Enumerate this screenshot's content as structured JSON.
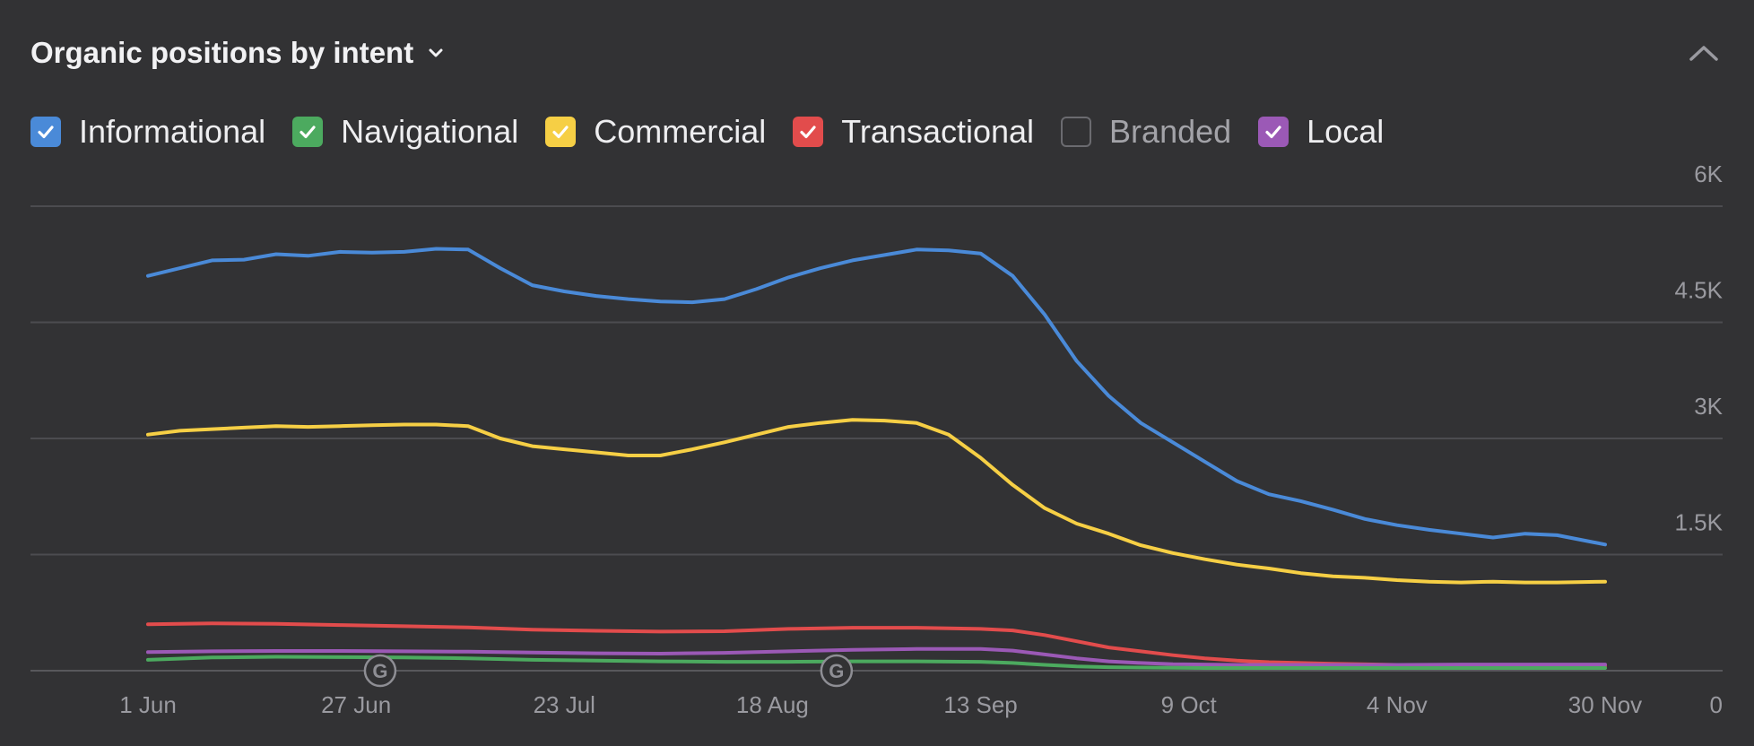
{
  "header": {
    "title": "Organic positions by intent"
  },
  "icons": {
    "title_dropdown": "chevron-down-icon",
    "collapse": "chevron-up-icon",
    "google_update": "google-update-marker-icon"
  },
  "legend": [
    {
      "label": "Informational",
      "checked": true,
      "color": "#4a8ad8"
    },
    {
      "label": "Navigational",
      "checked": true,
      "color": "#4caa5f"
    },
    {
      "label": "Commercial",
      "checked": true,
      "color": "#f6cf45"
    },
    {
      "label": "Transactional",
      "checked": true,
      "color": "#e24c4c"
    },
    {
      "label": "Branded",
      "checked": false,
      "color": "#6b6b70"
    },
    {
      "label": "Local",
      "checked": true,
      "color": "#9b59b6"
    }
  ],
  "chart_data": {
    "type": "line",
    "title": "Organic positions by intent",
    "xlabel": "",
    "ylabel": "",
    "x_ticks": [
      "1 Jun",
      "27 Jun",
      "23 Jul",
      "18 Aug",
      "13 Sep",
      "9 Oct",
      "4 Nov",
      "30 Nov"
    ],
    "y_ticks": [
      "0",
      "1.5K",
      "3K",
      "4.5K",
      "6K"
    ],
    "ylim": [
      0,
      6000
    ],
    "xlim": [
      0,
      182
    ],
    "grid": true,
    "legend_position": "top-left",
    "annotations": [
      {
        "type": "google-update",
        "label": "G",
        "x": 29
      },
      {
        "type": "google-update",
        "label": "G",
        "x": 86
      }
    ],
    "series": [
      {
        "name": "Informational",
        "color": "#4a8ad8",
        "x": [
          0,
          4,
          8,
          12,
          16,
          20,
          24,
          28,
          32,
          36,
          40,
          44,
          48,
          52,
          56,
          60,
          64,
          68,
          72,
          76,
          80,
          84,
          88,
          92,
          96,
          100,
          104,
          108,
          112,
          116,
          120,
          124,
          128,
          132,
          136,
          140,
          144,
          148,
          152,
          156,
          160,
          164,
          168,
          172,
          176,
          182
        ],
        "values": [
          5100,
          5200,
          5300,
          5310,
          5380,
          5360,
          5410,
          5400,
          5410,
          5450,
          5440,
          5200,
          4980,
          4900,
          4840,
          4800,
          4770,
          4760,
          4800,
          4930,
          5080,
          5200,
          5300,
          5370,
          5440,
          5430,
          5390,
          5100,
          4600,
          4000,
          3550,
          3200,
          2950,
          2700,
          2450,
          2280,
          2190,
          2080,
          1960,
          1880,
          1820,
          1770,
          1720,
          1770,
          1750,
          1630
        ]
      },
      {
        "name": "Commercial",
        "color": "#f6cf45",
        "x": [
          0,
          4,
          8,
          12,
          16,
          20,
          24,
          28,
          32,
          36,
          40,
          44,
          48,
          52,
          56,
          60,
          64,
          68,
          72,
          76,
          80,
          84,
          88,
          92,
          96,
          100,
          104,
          108,
          112,
          116,
          120,
          124,
          128,
          132,
          136,
          140,
          144,
          148,
          152,
          156,
          160,
          164,
          168,
          172,
          176,
          182
        ],
        "values": [
          3050,
          3100,
          3120,
          3140,
          3160,
          3150,
          3160,
          3170,
          3180,
          3180,
          3160,
          3000,
          2900,
          2860,
          2820,
          2780,
          2780,
          2860,
          2950,
          3050,
          3150,
          3200,
          3240,
          3230,
          3200,
          3050,
          2750,
          2400,
          2100,
          1900,
          1770,
          1620,
          1520,
          1440,
          1370,
          1320,
          1260,
          1220,
          1200,
          1170,
          1150,
          1140,
          1150,
          1140,
          1140,
          1150
        ]
      },
      {
        "name": "Transactional",
        "color": "#e24c4c",
        "x": [
          0,
          8,
          16,
          24,
          32,
          40,
          48,
          56,
          64,
          72,
          80,
          88,
          96,
          104,
          108,
          112,
          116,
          120,
          124,
          128,
          132,
          136,
          140,
          148,
          156,
          164,
          172,
          182
        ],
        "values": [
          600,
          610,
          605,
          590,
          575,
          560,
          530,
          515,
          505,
          510,
          540,
          555,
          555,
          540,
          520,
          460,
          380,
          300,
          250,
          200,
          160,
          130,
          110,
          90,
          75,
          70,
          65,
          60
        ]
      },
      {
        "name": "Local",
        "color": "#9b59b6",
        "x": [
          0,
          8,
          16,
          24,
          32,
          40,
          48,
          56,
          64,
          72,
          80,
          88,
          96,
          104,
          108,
          112,
          116,
          120,
          124,
          128,
          132,
          136,
          140,
          148,
          156,
          164,
          172,
          182
        ],
        "values": [
          240,
          250,
          255,
          255,
          250,
          245,
          235,
          225,
          220,
          230,
          250,
          270,
          280,
          280,
          260,
          210,
          160,
          120,
          100,
          85,
          80,
          75,
          75,
          75,
          75,
          80,
          80,
          80
        ]
      },
      {
        "name": "Navigational",
        "color": "#4caa5f",
        "x": [
          0,
          8,
          16,
          24,
          32,
          40,
          48,
          56,
          64,
          72,
          80,
          88,
          96,
          104,
          108,
          112,
          116,
          120,
          124,
          128,
          132,
          136,
          140,
          148,
          156,
          164,
          172,
          182
        ],
        "values": [
          140,
          170,
          180,
          175,
          170,
          160,
          140,
          130,
          120,
          115,
          115,
          120,
          120,
          115,
          100,
          75,
          55,
          45,
          40,
          38,
          35,
          35,
          35,
          35,
          35,
          35,
          35,
          35
        ]
      }
    ]
  }
}
